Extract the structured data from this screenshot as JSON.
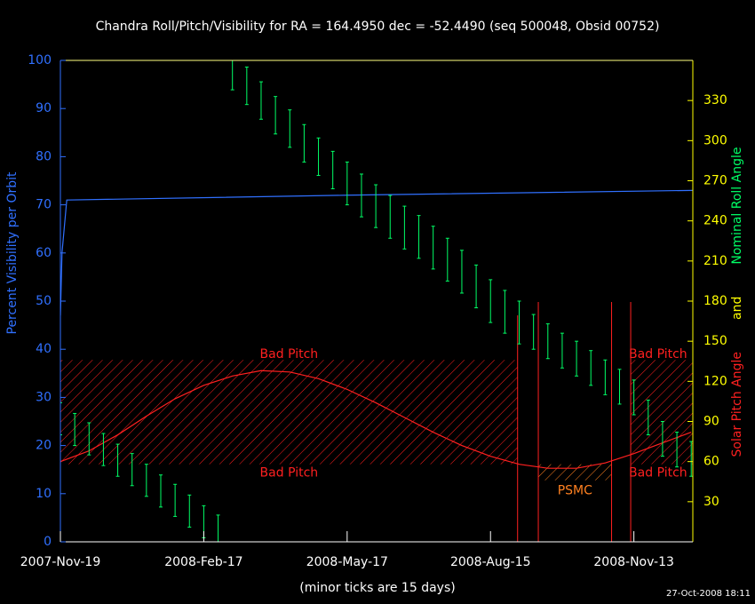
{
  "chart_data": {
    "type": "line",
    "title": "Chandra Roll/Pitch/Visibility for RA = 164.4950 dec = -52.4490 (seq 500048, Obsid 00752)",
    "xlabel": "(minor ticks are 15 days)",
    "ylabel": "Percent Visibility per Orbit",
    "y2label": [
      {
        "text": "Solar Pitch Angle",
        "color": "#ff2020"
      },
      {
        "text": "and",
        "color": "#ffff00"
      },
      {
        "text": "Nominal Roll Angle",
        "color": "#00ff66"
      }
    ],
    "timestamp": "27-Oct-2008 18:11",
    "xlim": [
      "2007-11-19",
      "2008-12-20"
    ],
    "xticks": [
      {
        "value": "2007-11-19",
        "label": "2007-Nov-19"
      },
      {
        "value": "2008-02-17",
        "label": "2008-Feb-17"
      },
      {
        "value": "2008-05-17",
        "label": "2008-May-17"
      },
      {
        "value": "2008-08-15",
        "label": "2008-Aug-15"
      },
      {
        "value": "2008-11-13",
        "label": "2008-Nov-13"
      }
    ],
    "ylim": [
      0,
      100
    ],
    "yticks": [
      0,
      10,
      20,
      30,
      40,
      50,
      60,
      70,
      80,
      90,
      100
    ],
    "y2lim": [
      0,
      360
    ],
    "y2ticks": [
      30,
      60,
      90,
      120,
      150,
      180,
      210,
      240,
      270,
      300,
      330
    ],
    "regions": [
      {
        "label": "Bad Pitch",
        "x": [
          "2007-11-19",
          "2008-09-01"
        ],
        "y2": [
          58,
          136
        ],
        "color": "#ff2020"
      },
      {
        "label": "Bad Pitch",
        "x": [
          "2008-11-11",
          "2008-12-20"
        ],
        "y2": [
          58,
          136
        ],
        "color": "#ff2020"
      },
      {
        "label": "PSMC",
        "x": [
          "2008-09-14",
          "2008-10-30"
        ],
        "y2": [
          46,
          58
        ],
        "color": "#ff8020"
      }
    ],
    "series": [
      {
        "color": "#3070ff",
        "axis": "y",
        "style": "line",
        "x": [
          "2007-11-19",
          "2007-11-20",
          "2007-11-23",
          "2008-05-17",
          "2008-12-20"
        ],
        "values": [
          47,
          60,
          71,
          72,
          73
        ]
      },
      {
        "color": "#ff2020",
        "axis": "y2",
        "style": "line",
        "x": [
          "2007-11-19",
          "2007-12-07",
          "2007-12-25",
          "2008-01-12",
          "2008-01-30",
          "2008-02-17",
          "2008-03-06",
          "2008-03-24",
          "2008-04-11",
          "2008-04-29",
          "2008-05-17",
          "2008-06-04",
          "2008-06-22",
          "2008-07-10",
          "2008-07-28",
          "2008-08-15",
          "2008-09-02",
          "2008-09-20",
          "2008-10-08",
          "2008-10-26",
          "2008-11-13",
          "2008-12-01",
          "2008-12-19"
        ],
        "values": [
          60,
          68,
          80,
          94,
          107,
          117,
          124,
          128,
          127,
          122,
          114,
          104,
          93,
          82,
          72,
          64,
          58,
          55,
          55,
          59,
          66,
          74,
          82
        ]
      },
      {
        "color": "#00ff66",
        "axis": "y2",
        "style": "errorbar",
        "x": [
          "2007-11-19",
          "2007-11-28",
          "2007-12-07",
          "2007-12-16",
          "2007-12-25",
          "2008-01-03",
          "2008-01-12",
          "2008-01-21",
          "2008-01-30",
          "2008-02-08",
          "2008-02-17",
          "2008-02-26",
          "2008-03-06",
          "2008-03-15",
          "2008-03-24",
          "2008-04-02",
          "2008-04-11",
          "2008-04-20",
          "2008-04-29",
          "2008-05-08",
          "2008-05-17",
          "2008-05-26",
          "2008-06-04",
          "2008-06-13",
          "2008-06-22",
          "2008-07-01",
          "2008-07-10",
          "2008-07-19",
          "2008-07-28",
          "2008-08-06",
          "2008-08-15",
          "2008-08-24",
          "2008-09-02",
          "2008-09-11",
          "2008-09-20",
          "2008-09-29",
          "2008-10-08",
          "2008-10-17",
          "2008-10-26",
          "2008-11-04",
          "2008-11-13",
          "2008-11-22",
          "2008-12-01",
          "2008-12-10",
          "2008-12-19"
        ],
        "values": [
          92,
          84,
          77,
          69,
          61,
          54,
          46,
          38,
          31,
          23,
          15,
          8,
          352,
          341,
          330,
          319,
          309,
          298,
          288,
          278,
          268,
          259,
          251,
          243,
          235,
          228,
          220,
          211,
          202,
          191,
          180,
          172,
          164,
          157,
          150,
          143,
          137,
          130,
          123,
          116,
          108,
          93,
          77,
          69,
          62
        ],
        "errors": [
          12,
          12,
          12,
          12,
          12,
          12,
          12,
          12,
          12,
          12,
          12,
          12,
          14,
          14,
          14,
          14,
          14,
          14,
          14,
          14,
          16,
          16,
          16,
          16,
          16,
          16,
          16,
          16,
          16,
          16,
          16,
          16,
          16,
          13,
          13,
          13,
          13,
          13,
          13,
          13,
          13,
          13,
          13,
          13,
          13
        ]
      }
    ]
  }
}
